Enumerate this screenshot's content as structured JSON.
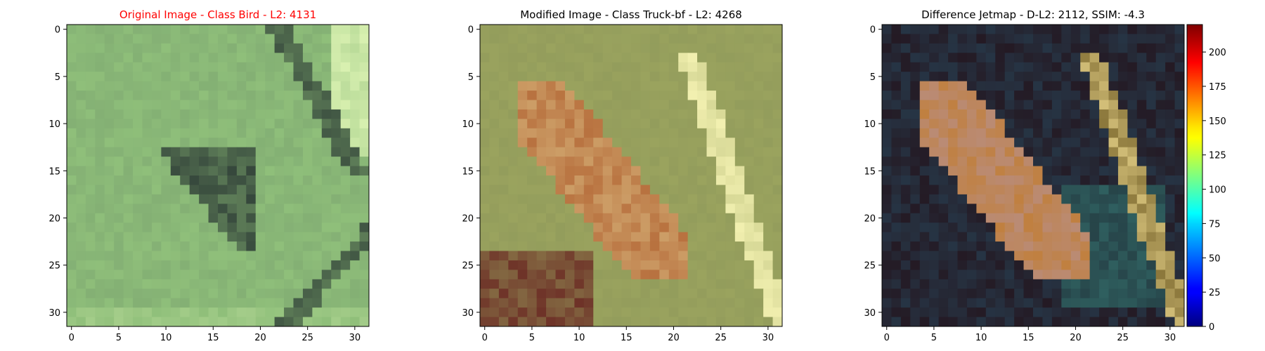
{
  "chart_data": [
    {
      "type": "heatmap",
      "title": "Original Image - Class Bird - L2: 4131",
      "title_color": "#ff0000",
      "grid_size": 32,
      "xticks": [
        0,
        5,
        10,
        15,
        20,
        25,
        30
      ],
      "yticks": [
        0,
        5,
        10,
        15,
        20,
        25,
        30
      ],
      "xlim": [
        -0.5,
        31.5
      ],
      "ylim": [
        31.5,
        -0.5
      ],
      "dominant_colors": [
        "#8fbf7a",
        "#2c3a35",
        "#d8f0b0"
      ]
    },
    {
      "type": "heatmap",
      "title": "Modified Image - Class Truck-bf - L2: 4268",
      "title_color": "#000000",
      "grid_size": 32,
      "xticks": [
        0,
        5,
        10,
        15,
        20,
        25,
        30
      ],
      "yticks": [
        0,
        5,
        10,
        15,
        20,
        25,
        30
      ],
      "xlim": [
        -0.5,
        31.5
      ],
      "ylim": [
        31.5,
        -0.5
      ],
      "dominant_colors": [
        "#9aa35e",
        "#b8713f",
        "#f2f0b0"
      ]
    },
    {
      "type": "heatmap",
      "title": "Difference Jetmap - D-L2: 2112, SSIM: -4.3",
      "title_color": "#000000",
      "grid_size": 32,
      "xticks": [
        0,
        5,
        10,
        15,
        20,
        25,
        30
      ],
      "yticks": [
        0,
        5,
        10,
        15,
        20,
        25,
        30
      ],
      "xlim": [
        -0.5,
        31.5
      ],
      "ylim": [
        31.5,
        -0.5
      ],
      "colorbar": {
        "colormap": "jet",
        "range": [
          0,
          220
        ],
        "ticks": [
          0,
          25,
          50,
          75,
          100,
          125,
          150,
          175,
          200
        ]
      },
      "dominant_colors": [
        "#241a24",
        "#2f5f5f",
        "#c08040"
      ]
    }
  ]
}
